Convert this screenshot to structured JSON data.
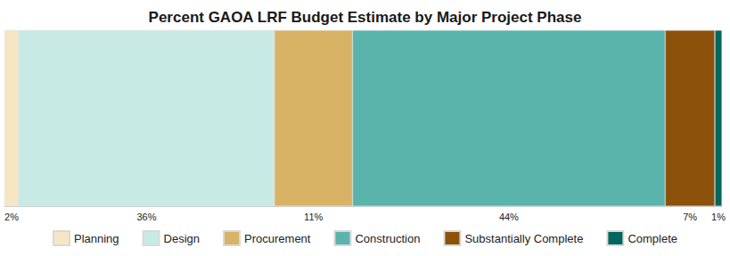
{
  "chart_data": {
    "type": "bar",
    "title": "Percent GAOA LRF Budget Estimate by Major Project Phase",
    "orientation": "horizontal",
    "stacked": true,
    "data_labels": true,
    "tick_labels": false,
    "grid": false,
    "legend": "bottom",
    "xlim": [
      0,
      101
    ],
    "series": [
      {
        "name": "Planning",
        "color": "#f6e6c3",
        "values": [
          2
        ],
        "value_labels": [
          "2%"
        ]
      },
      {
        "name": "Design",
        "color": "#c8eae4",
        "values": [
          36
        ],
        "value_labels": [
          "36%"
        ]
      },
      {
        "name": "Procurement",
        "color": "#d8b365",
        "values": [
          11
        ],
        "value_labels": [
          "11%"
        ]
      },
      {
        "name": "Construction",
        "color": "#5ab4ac",
        "values": [
          44
        ],
        "value_labels": [
          "44%"
        ]
      },
      {
        "name": "Substantially Complete",
        "color": "#8c510a",
        "values": [
          7
        ],
        "value_labels": [
          "7%"
        ]
      },
      {
        "name": "Complete",
        "color": "#01665e",
        "values": [
          1
        ],
        "value_labels": [
          "1%"
        ]
      }
    ]
  }
}
